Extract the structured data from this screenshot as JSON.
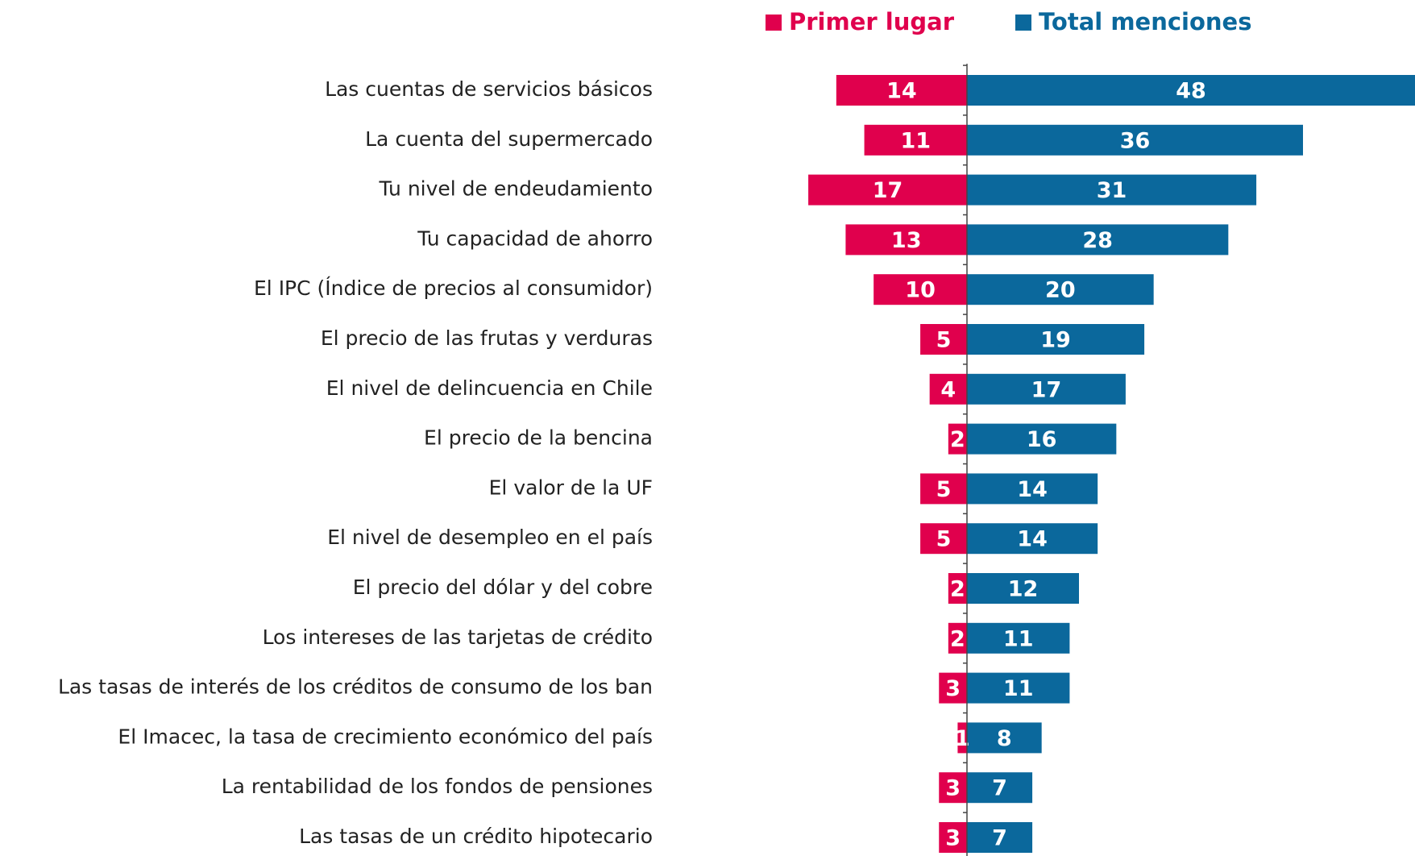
{
  "chart_data": {
    "type": "diverging_bar",
    "categories": [
      "Las cuentas de servicios básicos",
      "La cuenta del supermercado",
      "Tu nivel de endeudamiento",
      "Tu capacidad de ahorro",
      "El IPC (Índice de precios al consumidor)",
      "El precio de las frutas y verduras",
      "El nivel de delincuencia en Chile",
      "El precio de la bencina",
      "El valor de la UF",
      "El nivel de desempleo en el país",
      "El precio del dólar y del cobre",
      "Los intereses de las tarjetas de crédito",
      "Las tasas de interés de los créditos de consumo de los ban",
      "El Imacec, la tasa de crecimiento económico del país",
      "La rentabilidad de los fondos de pensiones",
      "Las tasas de un crédito hipotecario"
    ],
    "series": [
      {
        "name": "Primer lugar",
        "color": "#e0004d",
        "values": [
          14,
          11,
          17,
          13,
          10,
          5,
          4,
          2,
          5,
          5,
          2,
          2,
          3,
          1,
          3,
          3
        ]
      },
      {
        "name": "Total menciones",
        "color": "#0b689c",
        "values": [
          48,
          36,
          31,
          28,
          20,
          19,
          17,
          16,
          14,
          14,
          12,
          11,
          11,
          8,
          7,
          7
        ]
      }
    ],
    "legend": "top"
  }
}
